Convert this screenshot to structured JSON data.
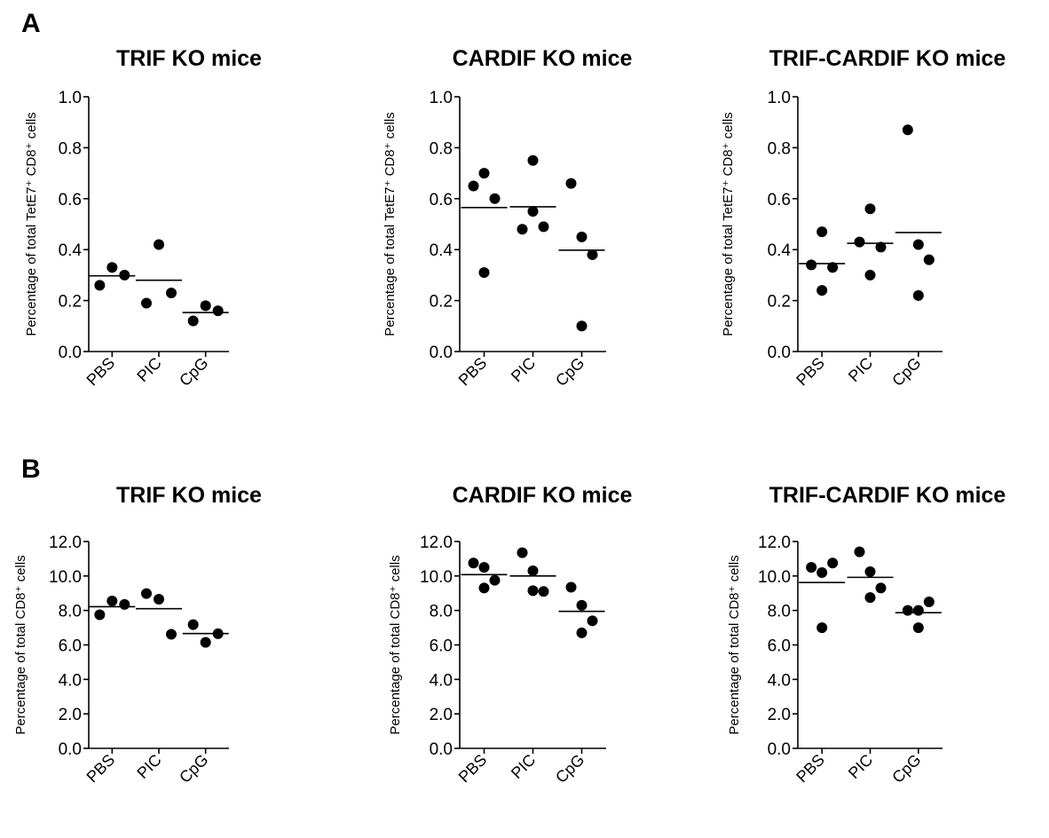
{
  "panels": [
    {
      "letter": "A"
    },
    {
      "letter": "B"
    }
  ],
  "chart_data": [
    {
      "type": "scatter",
      "panel": "A",
      "title": "TRIF KO mice",
      "ylabel": "Percentage of total TetE7⁺ CD8⁺ cells",
      "categories": [
        "PBS",
        "PIC",
        "CpG"
      ],
      "ylim": [
        0,
        1.0
      ],
      "yticks": [
        "0.0",
        "0.2",
        "0.4",
        "0.6",
        "0.8",
        "1.0"
      ],
      "points": [
        [
          0.26,
          0.33,
          0.3
        ],
        [
          0.19,
          0.42,
          0.23
        ],
        [
          0.12,
          0.18,
          0.16
        ]
      ],
      "means": [
        0.297,
        0.28,
        0.153
      ],
      "grid": false
    },
    {
      "type": "scatter",
      "panel": "A",
      "title": "CARDIF KO mice",
      "ylabel": "Percentage of total TetE7⁺ CD8⁺ cells",
      "categories": [
        "PBS",
        "PIC",
        "CpG"
      ],
      "ylim": [
        0,
        1.0
      ],
      "yticks": [
        "0.0",
        "0.2",
        "0.4",
        "0.6",
        "0.8",
        "1.0"
      ],
      "points": [
        [
          0.65,
          0.7,
          0.6,
          0.31
        ],
        [
          0.48,
          0.55,
          0.49,
          0.75
        ],
        [
          0.66,
          0.45,
          0.38,
          0.1
        ]
      ],
      "means": [
        0.565,
        0.568,
        0.398
      ],
      "grid": false
    },
    {
      "type": "scatter",
      "panel": "A",
      "title": "TRIF-CARDIF KO mice",
      "ylabel": "Percentage of total TetE7⁺ CD8⁺ cells",
      "categories": [
        "PBS",
        "PIC",
        "CpG"
      ],
      "ylim": [
        0,
        1.0
      ],
      "yticks": [
        "0.0",
        "0.2",
        "0.4",
        "0.6",
        "0.8",
        "1.0"
      ],
      "points": [
        [
          0.34,
          0.47,
          0.33,
          0.24
        ],
        [
          0.43,
          0.56,
          0.41,
          0.3
        ],
        [
          0.87,
          0.42,
          0.36,
          0.22
        ]
      ],
      "means": [
        0.345,
        0.425,
        0.467
      ],
      "grid": false
    },
    {
      "type": "scatter",
      "panel": "B",
      "title": "TRIF KO mice",
      "ylabel": "Percentage of total CD8⁺ cells",
      "categories": [
        "PBS",
        "PIC",
        "CpG"
      ],
      "ylim": [
        0,
        12.0
      ],
      "yticks": [
        "0.0",
        "2.0",
        "4.0",
        "6.0",
        "8.0",
        "10.0",
        "12.0"
      ],
      "points": [
        [
          7.75,
          8.55,
          8.35
        ],
        [
          8.98,
          8.65,
          6.62
        ],
        [
          7.18,
          6.15,
          6.65
        ]
      ],
      "means": [
        8.22,
        8.1,
        6.66
      ],
      "grid": false
    },
    {
      "type": "scatter",
      "panel": "B",
      "title": "CARDIF KO mice",
      "ylabel": "Percentage of total CD8⁺ cells",
      "categories": [
        "PBS",
        "PIC",
        "CpG"
      ],
      "ylim": [
        0,
        12.0
      ],
      "yticks": [
        "0.0",
        "2.0",
        "4.0",
        "6.0",
        "8.0",
        "10.0",
        "12.0"
      ],
      "points": [
        [
          10.75,
          10.5,
          9.75,
          9.3
        ],
        [
          11.35,
          10.3,
          9.1,
          9.15
        ],
        [
          9.35,
          8.3,
          7.4,
          6.7
        ]
      ],
      "means": [
        10.08,
        10.0,
        7.95
      ],
      "grid": false
    },
    {
      "type": "scatter",
      "panel": "B",
      "title": "TRIF-CARDIF KO mice",
      "ylabel": "Percentage of total CD8⁺ cells",
      "categories": [
        "PBS",
        "PIC",
        "CpG"
      ],
      "ylim": [
        0,
        12.0
      ],
      "yticks": [
        "0.0",
        "2.0",
        "4.0",
        "6.0",
        "8.0",
        "10.0",
        "12.0"
      ],
      "points": [
        [
          10.5,
          10.2,
          10.75,
          7.0
        ],
        [
          11.4,
          10.25,
          9.3,
          8.75
        ],
        [
          8.0,
          8.0,
          8.5,
          7.0
        ]
      ],
      "means": [
        9.62,
        9.92,
        7.87
      ],
      "grid": false
    }
  ]
}
